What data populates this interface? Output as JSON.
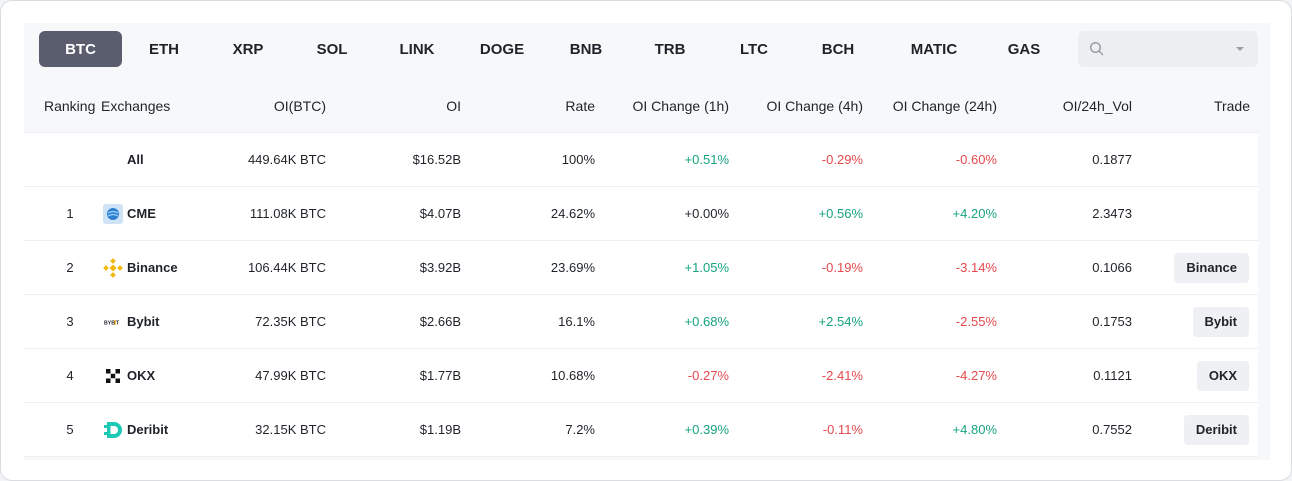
{
  "tabs": [
    "BTC",
    "ETH",
    "XRP",
    "SOL",
    "LINK",
    "DOGE",
    "BNB",
    "TRB",
    "LTC",
    "BCH",
    "MATIC",
    "GAS"
  ],
  "active_tab": "BTC",
  "search": {
    "value": "",
    "placeholder": ""
  },
  "headers": {
    "ranking": "Ranking",
    "exchanges": "Exchanges",
    "oi_btc": "OI(BTC)",
    "oi": "OI",
    "rate": "Rate",
    "oi_1h": "OI Change (1h)",
    "oi_4h": "OI Change (4h)",
    "oi_24h": "OI Change (24h)",
    "oi_vol": "OI/24h_Vol",
    "trade": "Trade"
  },
  "colors": {
    "positive": "#16a37f",
    "negative": "#e5484d",
    "active_tab": "#5a5d6d"
  },
  "rows": [
    {
      "rank": "",
      "exchange": "All",
      "icon": "",
      "oi_btc": "449.64K BTC",
      "oi": "$16.52B",
      "rate": "100%",
      "ch1h": "+0.51%",
      "ch1h_dir": "up",
      "ch4h": "-0.29%",
      "ch4h_dir": "down",
      "ch24h": "-0.60%",
      "ch24h_dir": "down",
      "oi_vol": "0.1877",
      "trade": ""
    },
    {
      "rank": "1",
      "exchange": "CME",
      "icon": "cme-logo-icon",
      "oi_btc": "111.08K BTC",
      "oi": "$4.07B",
      "rate": "24.62%",
      "ch1h": "+0.00%",
      "ch1h_dir": "flat",
      "ch4h": "+0.56%",
      "ch4h_dir": "up",
      "ch24h": "+4.20%",
      "ch24h_dir": "up",
      "oi_vol": "2.3473",
      "trade": ""
    },
    {
      "rank": "2",
      "exchange": "Binance",
      "icon": "binance-logo-icon",
      "oi_btc": "106.44K BTC",
      "oi": "$3.92B",
      "rate": "23.69%",
      "ch1h": "+1.05%",
      "ch1h_dir": "up",
      "ch4h": "-0.19%",
      "ch4h_dir": "down",
      "ch24h": "-3.14%",
      "ch24h_dir": "down",
      "oi_vol": "0.1066",
      "trade": "Binance"
    },
    {
      "rank": "3",
      "exchange": "Bybit",
      "icon": "bybit-logo-icon",
      "oi_btc": "72.35K BTC",
      "oi": "$2.66B",
      "rate": "16.1%",
      "ch1h": "+0.68%",
      "ch1h_dir": "up",
      "ch4h": "+2.54%",
      "ch4h_dir": "up",
      "ch24h": "-2.55%",
      "ch24h_dir": "down",
      "oi_vol": "0.1753",
      "trade": "Bybit"
    },
    {
      "rank": "4",
      "exchange": "OKX",
      "icon": "okx-logo-icon",
      "oi_btc": "47.99K BTC",
      "oi": "$1.77B",
      "rate": "10.68%",
      "ch1h": "-0.27%",
      "ch1h_dir": "down",
      "ch4h": "-2.41%",
      "ch4h_dir": "down",
      "ch24h": "-4.27%",
      "ch24h_dir": "down",
      "oi_vol": "0.1121",
      "trade": "OKX"
    },
    {
      "rank": "5",
      "exchange": "Deribit",
      "icon": "deribit-logo-icon",
      "oi_btc": "32.15K BTC",
      "oi": "$1.19B",
      "rate": "7.2%",
      "ch1h": "+0.39%",
      "ch1h_dir": "up",
      "ch4h": "-0.11%",
      "ch4h_dir": "down",
      "ch24h": "+4.80%",
      "ch24h_dir": "up",
      "oi_vol": "0.7552",
      "trade": "Deribit"
    }
  ]
}
